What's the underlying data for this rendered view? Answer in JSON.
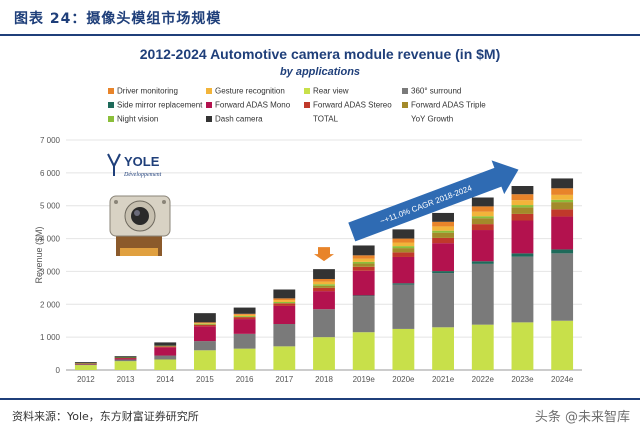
{
  "header": {
    "cn_title": "图表 24：摄像头模组市场规模"
  },
  "footer": {
    "source": "资料来源：Yole，东方财富证券研究所",
    "watermark": "头条 @未来智库"
  },
  "logo": {
    "brand": "YOLE",
    "tagline": "Développement"
  },
  "annotations": {
    "cagr": "~+11.0% CAGR 2018-2024"
  },
  "colors": {
    "header_rule": "#1f3f7a",
    "arrow": "#2f6bb3",
    "marker": "#e8842a"
  },
  "chart_data": {
    "type": "bar",
    "stacked": true,
    "title": "2012-2024 Automotive camera module revenue (in $M)",
    "subtitle": "by applications",
    "ylabel": "Revenue ($M)",
    "xlabel": "",
    "ylim": [
      0,
      7000
    ],
    "yticks": [
      "0",
      "1 000",
      "2 000",
      "3 000",
      "4 000",
      "5 000",
      "6 000",
      "7 000"
    ],
    "categories": [
      "2012",
      "2013",
      "2014",
      "2015",
      "2016",
      "2017",
      "2018",
      "2019e",
      "2020e",
      "2021e",
      "2022e",
      "2023e",
      "2024e"
    ],
    "legend": [
      {
        "name": "Driver monitoring",
        "color": "#e8842a"
      },
      {
        "name": "Gesture recognition",
        "color": "#f2b43a"
      },
      {
        "name": "Rear view",
        "color": "#c8e04a"
      },
      {
        "name": "360° surround",
        "color": "#7a7a7a"
      },
      {
        "name": "Side mirror replacement",
        "color": "#1e6a5a"
      },
      {
        "name": "Forward ADAS Mono",
        "color": "#b3124e"
      },
      {
        "name": "Forward ADAS Stereo",
        "color": "#c0392b"
      },
      {
        "name": "Forward ADAS Triple",
        "color": "#a38a2a"
      },
      {
        "name": "Night vision",
        "color": "#8bbf3a"
      },
      {
        "name": "Dash camera",
        "color": "#333333"
      },
      {
        "name": "TOTAL",
        "color": ""
      },
      {
        "name": "YoY Growth",
        "color": ""
      }
    ],
    "series": [
      {
        "name": "Rear view",
        "color": "#c8e04a",
        "values": [
          150,
          270,
          320,
          600,
          650,
          720,
          1000,
          1150,
          1250,
          1300,
          1380,
          1450,
          1500
        ]
      },
      {
        "name": "360° surround",
        "color": "#7a7a7a",
        "values": [
          20,
          50,
          120,
          280,
          450,
          680,
          850,
          1100,
          1350,
          1650,
          1850,
          2000,
          2050
        ]
      },
      {
        "name": "Side mirror replacement",
        "color": "#1e6a5a",
        "values": [
          0,
          0,
          0,
          0,
          0,
          0,
          0,
          20,
          40,
          60,
          80,
          100,
          120
        ]
      },
      {
        "name": "Forward ADAS Mono",
        "color": "#b3124e",
        "values": [
          20,
          40,
          250,
          450,
          450,
          550,
          550,
          750,
          800,
          850,
          950,
          1000,
          1000
        ]
      },
      {
        "name": "Forward ADAS Stereo",
        "color": "#c0392b",
        "values": [
          10,
          10,
          30,
          50,
          60,
          80,
          100,
          120,
          140,
          160,
          180,
          200,
          220
        ]
      },
      {
        "name": "Forward ADAS Triple",
        "color": "#a38a2a",
        "values": [
          0,
          0,
          0,
          0,
          0,
          0,
          60,
          100,
          130,
          160,
          180,
          200,
          220
        ]
      },
      {
        "name": "Night vision",
        "color": "#8bbf3a",
        "values": [
          10,
          10,
          20,
          30,
          30,
          40,
          50,
          50,
          60,
          60,
          60,
          70,
          70
        ]
      },
      {
        "name": "Gesture recognition",
        "color": "#f2b43a",
        "values": [
          0,
          0,
          0,
          20,
          40,
          60,
          80,
          100,
          110,
          130,
          140,
          150,
          150
        ]
      },
      {
        "name": "Driver monitoring",
        "color": "#e8842a",
        "values": [
          0,
          0,
          0,
          20,
          30,
          50,
          80,
          100,
          120,
          140,
          160,
          180,
          200
        ]
      },
      {
        "name": "Dash camera",
        "color": "#333333",
        "values": [
          30,
          40,
          100,
          280,
          190,
          270,
          300,
          300,
          280,
          270,
          270,
          250,
          300
        ]
      }
    ],
    "grid": "horizontal",
    "legend_placement": "top"
  }
}
